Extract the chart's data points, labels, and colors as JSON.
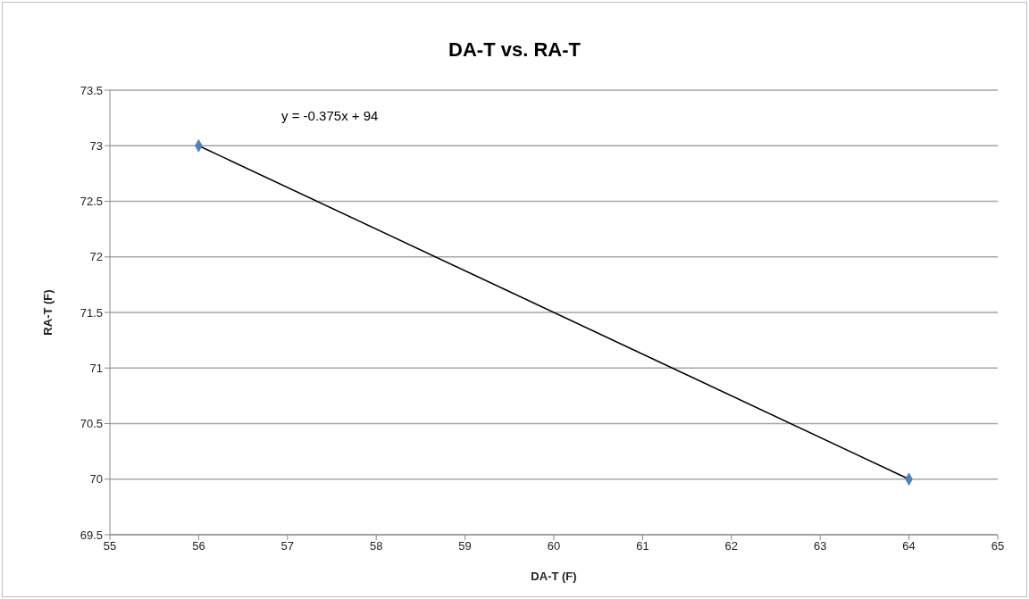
{
  "chart_data": {
    "type": "scatter",
    "title": "DA-T vs. RA-T",
    "xlabel": "DA-T (F)",
    "ylabel": "RA-T (F)",
    "annotations": [
      "y = -0.375x + 94"
    ],
    "x": [
      56,
      64
    ],
    "series": [
      {
        "color": "#4f81bd",
        "marker": "diamond",
        "values": [
          73,
          70
        ]
      },
      {
        "type": "line",
        "color": "#000000",
        "marker": "none",
        "values": [
          73,
          70
        ]
      }
    ],
    "xlim": [
      55,
      65
    ],
    "xticks": [
      55,
      56,
      57,
      58,
      59,
      60,
      61,
      62,
      63,
      64,
      65
    ],
    "ylim": [
      69.5,
      73.5
    ],
    "yticks": [
      69.5,
      70,
      70.5,
      71,
      71.5,
      72,
      72.5,
      73,
      73.5
    ],
    "grid": "y"
  }
}
